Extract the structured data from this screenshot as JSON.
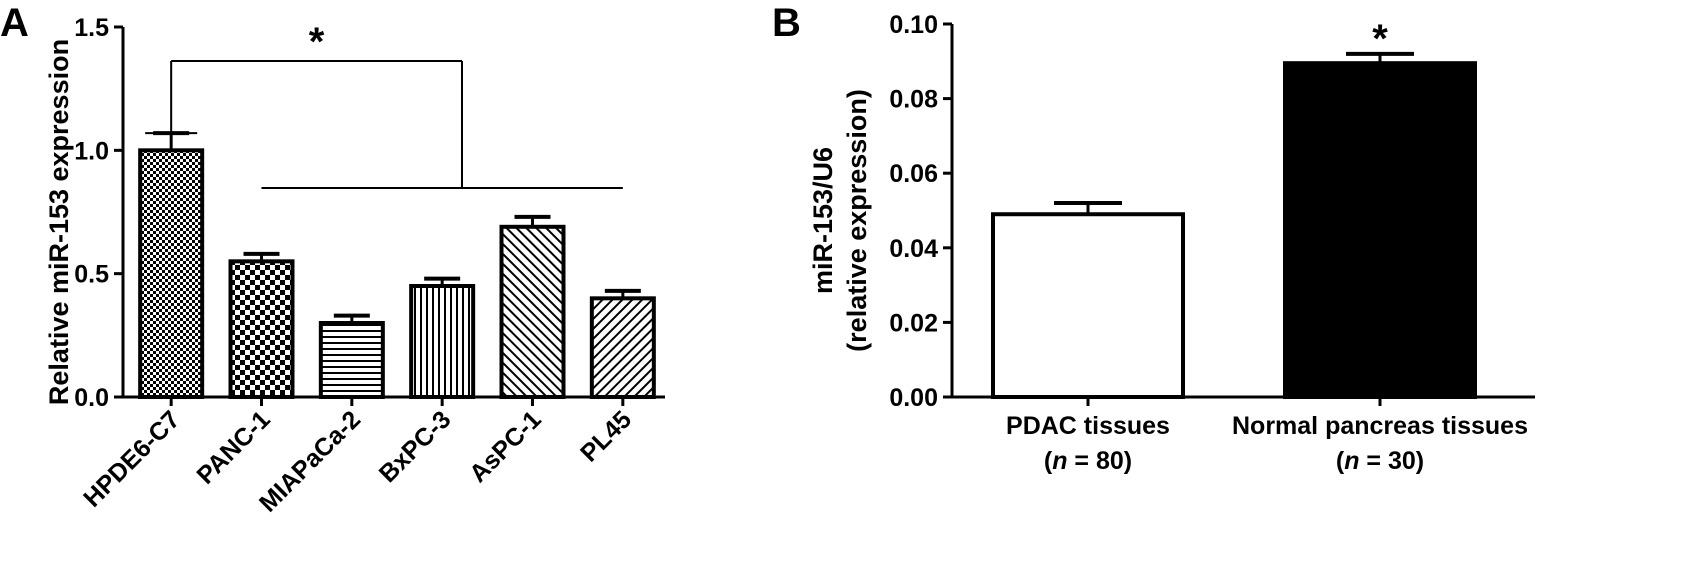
{
  "panels": {
    "a": {
      "letter": "A"
    },
    "b": {
      "letter": "B"
    }
  },
  "chart_data": [
    {
      "type": "bar",
      "panel": "A",
      "title": "",
      "xlabel": "",
      "ylabel": "Relative miR-153 expression",
      "ylim": [
        0,
        1.5
      ],
      "yticks": [
        "0.0",
        "0.5",
        "1.0",
        "1.5"
      ],
      "categories": [
        "HPDE6-C7",
        "PANC-1",
        "MIAPaCa-2",
        "BxPC-3",
        "AsPC-1",
        "PL45"
      ],
      "values": [
        1.0,
        0.55,
        0.3,
        0.45,
        0.69,
        0.4
      ],
      "errors": [
        0.07,
        0.03,
        0.03,
        0.03,
        0.04,
        0.03
      ],
      "fills": [
        "dense-checker",
        "checker",
        "horizontal-lines",
        "vertical-lines",
        "diagonal-right",
        "diagonal-left"
      ],
      "bar_color": "#000000",
      "annotation": {
        "text": "*",
        "from": "HPDE6-C7",
        "to": "PANC-1 to PL45"
      },
      "grid": false,
      "legend": "none"
    },
    {
      "type": "bar",
      "panel": "B",
      "title": "",
      "xlabel": "",
      "ylabel": [
        "miR-153/U6",
        "(relative expression)"
      ],
      "ylim": [
        0,
        0.1
      ],
      "yticks": [
        "0.00",
        "0.02",
        "0.04",
        "0.06",
        "0.08",
        "0.10"
      ],
      "categories": [
        "PDAC tissues",
        "Normal pancreas tissues"
      ],
      "category_ns": [
        {
          "pre": "(",
          "var": "n",
          "post": " = 80)"
        },
        {
          "pre": "(",
          "var": "n",
          "post": " = 30)"
        }
      ],
      "values": [
        0.049,
        0.0895
      ],
      "errors": [
        0.003,
        0.0025
      ],
      "fills": [
        "#ffffff",
        "#000000"
      ],
      "annotation": {
        "text": "*",
        "on": "Normal pancreas tissues"
      },
      "grid": false,
      "legend": "none"
    }
  ]
}
